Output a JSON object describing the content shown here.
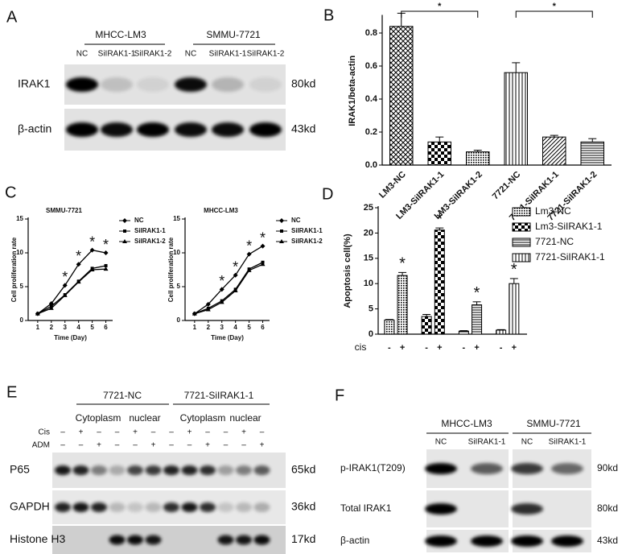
{
  "panels": [
    "A",
    "B",
    "C",
    "D",
    "E",
    "F"
  ],
  "blot_a": {
    "groups": [
      "MHCC-LM3",
      "SMMU-7721"
    ],
    "lanes": [
      "NC",
      "SiIRAK1-1",
      "SiIRAK1-2",
      "NC",
      "SiIRAK1-1",
      "SiIRAK1-2"
    ],
    "rows": [
      {
        "label": "IRAK1",
        "size": "80kd"
      },
      {
        "label": "β-actin",
        "size": "43kd"
      }
    ]
  },
  "chart_data": [
    {
      "type": "bar",
      "ylabel": "IRAK1/beta-actin",
      "categories": [
        "LM3-NC",
        "LM3-SiIRAK1-1",
        "LM3-SiIRAK1-2",
        "7721-NC",
        "7721-SiIRAK1-1",
        "7721-SiIRAK1-2"
      ],
      "values": [
        0.84,
        0.14,
        0.08,
        0.56,
        0.17,
        0.14
      ],
      "errors": [
        0.08,
        0.03,
        0.01,
        0.06,
        0.01,
        0.02
      ],
      "hatches": [
        "crosshatch",
        "checker",
        "dense",
        "vertical",
        "diagonal",
        "horizontal"
      ],
      "color": "#000000",
      "ylim": [
        0,
        0.9
      ],
      "yticks": [
        {
          "value": 0,
          "label": "0.0"
        },
        0.2,
        0.4,
        0.6,
        0.8
      ],
      "annotations": [
        "*",
        "*"
      ]
    },
    {
      "type": "line",
      "title": "SMMU-7721",
      "xlabel": "Time (Day)",
      "ylabel": "Cell proliferation rate",
      "x": [
        1,
        2,
        3,
        4,
        5,
        6
      ],
      "xlim": [
        0.3,
        6.5
      ],
      "xticks": [
        1,
        2,
        3,
        4,
        5,
        6
      ],
      "ylim": [
        0,
        15
      ],
      "yticks": [
        0,
        5,
        10,
        15
      ],
      "series": [
        {
          "name": "NC",
          "color": "#000000",
          "marker": "diamond",
          "values": [
            1,
            2.5,
            5.2,
            8.3,
            10.4,
            10.0
          ]
        },
        {
          "name": "SiIRAK1-1",
          "color": "#000000",
          "marker": "square",
          "values": [
            1,
            2.1,
            3.8,
            5.8,
            7.7,
            8.1
          ]
        },
        {
          "name": "SiIRAK1-2",
          "color": "#000000",
          "marker": "triangle",
          "values": [
            1,
            1.8,
            3.7,
            5.7,
            7.5,
            7.6
          ]
        }
      ],
      "annotations": [
        {
          "x": 3,
          "text": "*"
        },
        {
          "x": 4,
          "text": "*"
        },
        {
          "x": 5,
          "text": "*"
        },
        {
          "x": 6,
          "text": "*"
        }
      ]
    },
    {
      "type": "line",
      "title": "MHCC-LM3",
      "xlabel": "Time (Day)",
      "ylabel": "Cell proliferation rate",
      "x": [
        1,
        2,
        3,
        4,
        5,
        6
      ],
      "xlim": [
        0.3,
        6.5
      ],
      "xticks": [
        1,
        2,
        3,
        4,
        5,
        6
      ],
      "ylim": [
        0,
        15
      ],
      "yticks": [
        0,
        5,
        10,
        15
      ],
      "series": [
        {
          "name": "NC",
          "color": "#000000",
          "marker": "diamond",
          "values": [
            1,
            2.4,
            4.6,
            6.7,
            9.8,
            11.0
          ]
        },
        {
          "name": "SiIRAK1-1",
          "color": "#000000",
          "marker": "square",
          "values": [
            1,
            1.8,
            2.9,
            4.6,
            7.6,
            8.6
          ]
        },
        {
          "name": "SiIRAK1-2",
          "color": "#000000",
          "marker": "triangle",
          "values": [
            1,
            1.6,
            2.7,
            4.4,
            7.4,
            8.3
          ]
        }
      ],
      "annotations": [
        {
          "x": 3,
          "text": "*"
        },
        {
          "x": 4,
          "text": "*"
        },
        {
          "x": 5,
          "text": "*"
        },
        {
          "x": 6,
          "text": "*"
        }
      ]
    },
    {
      "type": "bar",
      "ylabel": "Apoptosis cell(%)",
      "xlabel": "cis",
      "categories": [
        "-",
        "+"
      ],
      "series": [
        {
          "name": "Lm3-NC",
          "hatch": "dense",
          "values": [
            2.8,
            11.6
          ],
          "errors": [
            0.1,
            0.6
          ]
        },
        {
          "name": "Lm3-SiIRAK1-1",
          "hatch": "checker",
          "values": [
            3.5,
            20.6
          ],
          "errors": [
            0.4,
            0.4
          ]
        },
        {
          "name": "7721-NC",
          "hatch": "horizontal",
          "values": [
            0.6,
            5.8
          ],
          "errors": [
            0.1,
            0.6
          ]
        },
        {
          "name": "7721-SiIRAK1-1",
          "hatch": "vertical",
          "values": [
            0.8,
            10.0
          ],
          "errors": [
            0.1,
            1.0
          ]
        }
      ],
      "ylim": [
        0,
        25
      ],
      "yticks": [
        0,
        5,
        10,
        15,
        20,
        25
      ],
      "annotations": [
        "*",
        "*",
        "*",
        "*"
      ],
      "legend": "right"
    }
  ],
  "blot_e": {
    "groups": [
      "7721-NC",
      "7721-SiIRAK1-1"
    ],
    "subgroups": [
      "Cytoplasm",
      "nuclear",
      "Cytoplasm",
      "nuclear"
    ],
    "treatments": [
      {
        "label": "Cis",
        "marks": [
          "–",
          "+",
          "–",
          "–",
          "+",
          "–",
          "–",
          "+",
          "–",
          "–",
          "+",
          "–"
        ]
      },
      {
        "label": "ADM",
        "marks": [
          "–",
          "–",
          "+",
          "–",
          "–",
          "+",
          "–",
          "–",
          "+",
          "–",
          "–",
          "+"
        ]
      }
    ],
    "rows": [
      {
        "label": "P65",
        "size": "65kd"
      },
      {
        "label": "GAPDH",
        "size": "36kd"
      },
      {
        "label": "Histone H3",
        "size": "17kd"
      }
    ]
  },
  "blot_f": {
    "groups": [
      "MHCC-LM3",
      "SMMU-7721"
    ],
    "lanes": [
      "NC",
      "SiIRAK1-1",
      "NC",
      "SiIRAK1-1"
    ],
    "rows": [
      {
        "label": "p-IRAK1(T209)",
        "size": "90kd"
      },
      {
        "label": "Total IRAK1",
        "size": "80kd"
      },
      {
        "label": "β-actin",
        "size": "43kd"
      }
    ]
  }
}
